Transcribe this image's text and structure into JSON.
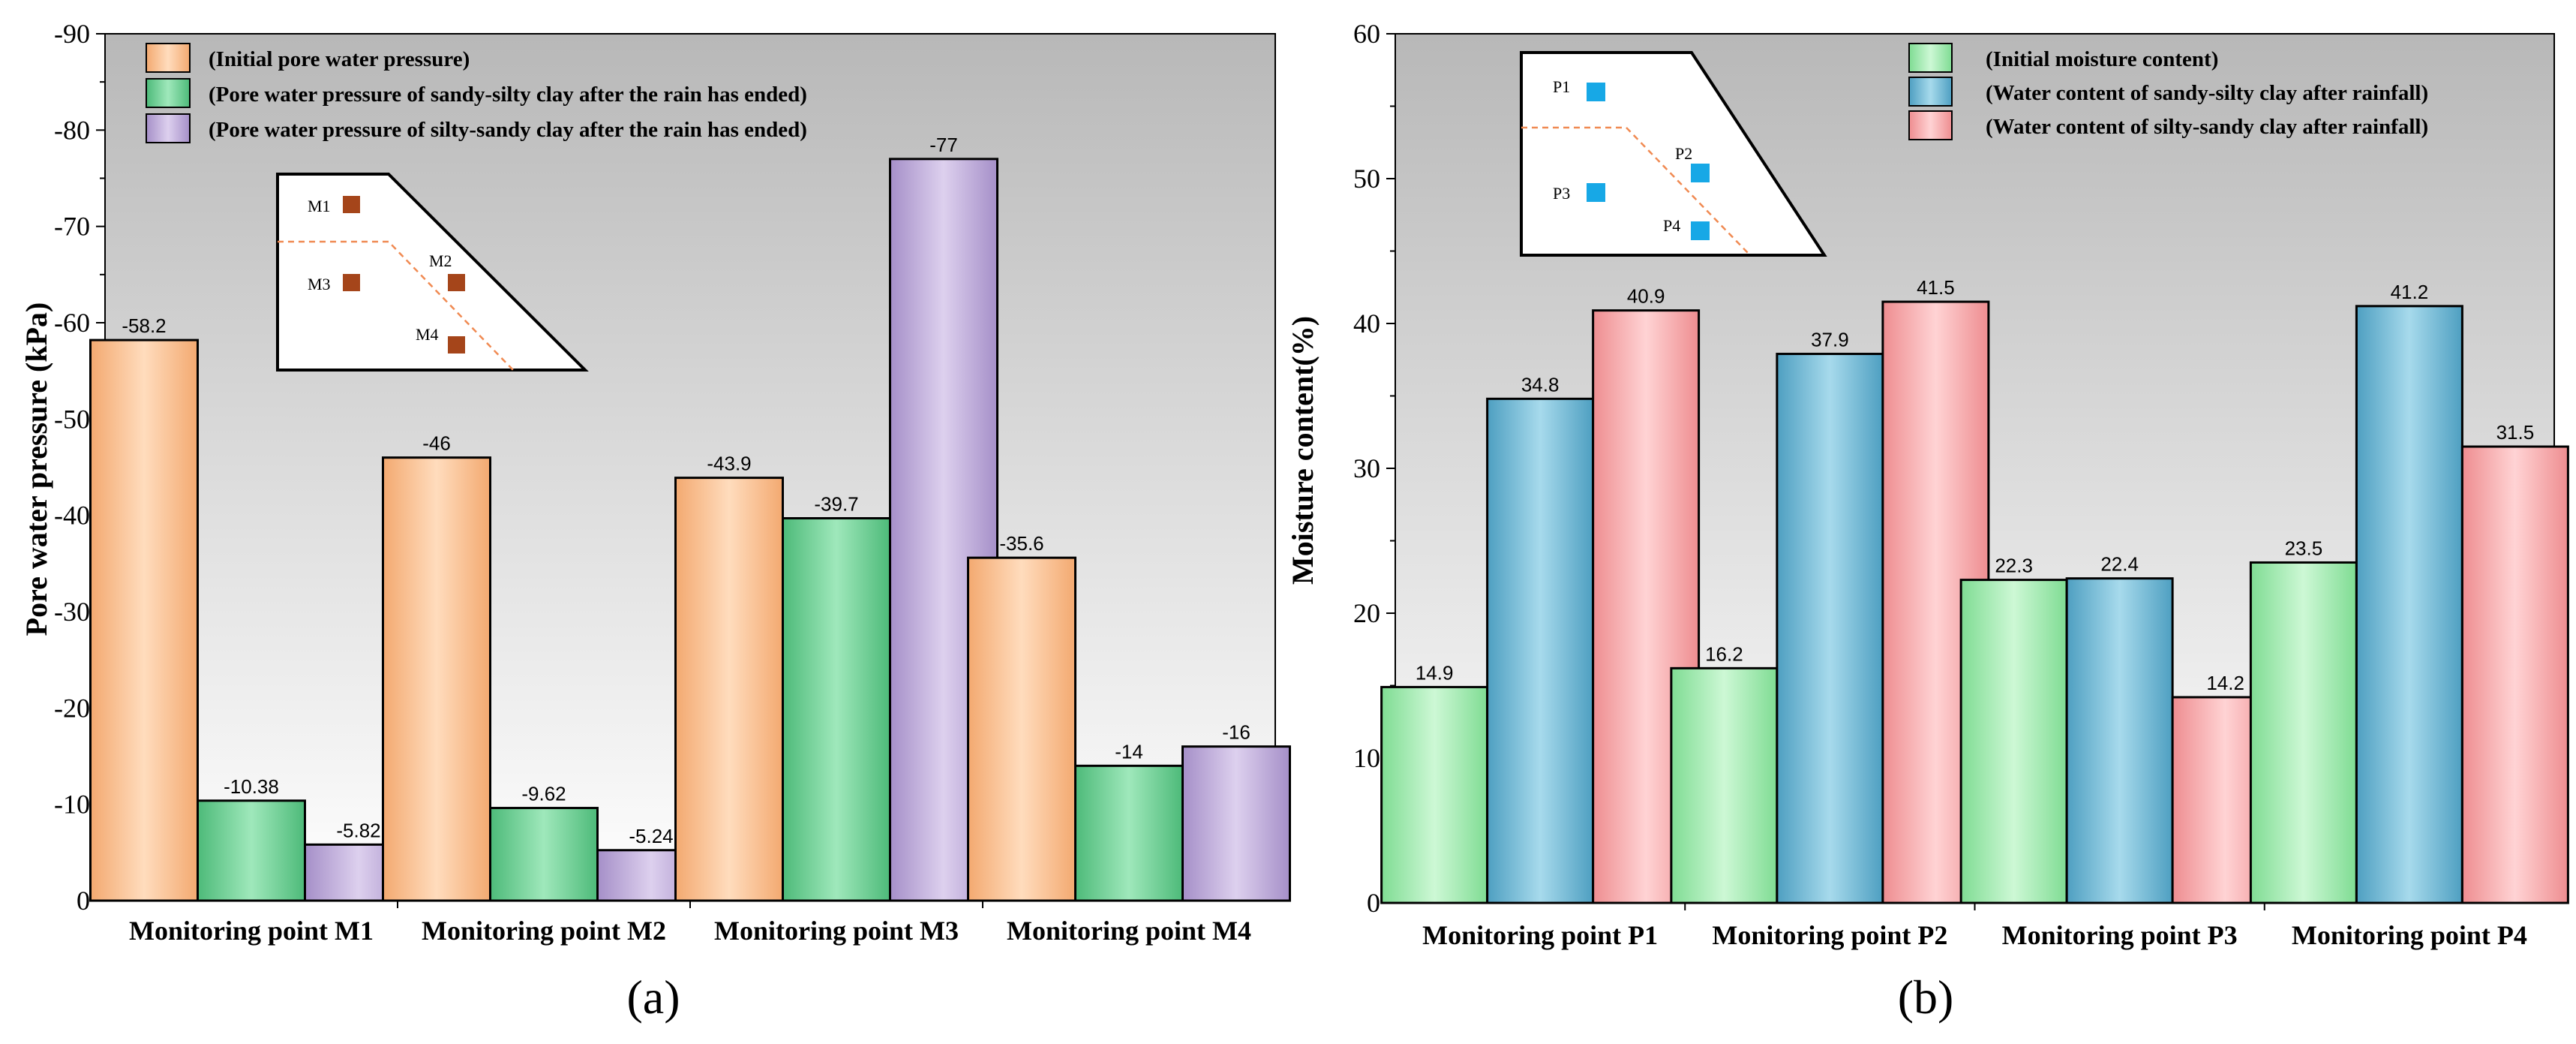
{
  "colors": {
    "peach": "#fdc69c",
    "green": "#75d49b",
    "purple": "#c3b1dc",
    "mint": "#a6ecb4",
    "blue": "#77bfd9",
    "pink": "#f8b2b4",
    "m_marker": "#a5451a",
    "p_marker": "#17a8e6"
  },
  "subplot_a": "(a)",
  "subplot_b": "(b)",
  "inset_a": {
    "labels": [
      "M1",
      "M2",
      "M3",
      "M4"
    ]
  },
  "inset_b": {
    "labels": [
      "P1",
      "P2",
      "P3",
      "P4"
    ]
  },
  "chart_data": [
    {
      "type": "bar",
      "ylabel": "Pore water pressure  (kPa)",
      "ylim": [
        0,
        -90
      ],
      "yticks": [
        0,
        -10,
        -20,
        -30,
        -40,
        -50,
        -60,
        -70,
        -80,
        -90
      ],
      "legend_position": "top-left",
      "categories": [
        "Monitoring point M1",
        "Monitoring point M2",
        "Monitoring point M3",
        "Monitoring point M4"
      ],
      "series": [
        {
          "name": "(Initial pore water pressure)",
          "values": [
            -58.2,
            -46,
            -43.9,
            -35.6
          ],
          "labels": [
            "-58.2",
            "-46",
            "-43.9",
            "-35.6"
          ],
          "color_key": "peach"
        },
        {
          "name": "(Pore water pressure of sandy-silty clay after the rain has ended)",
          "values": [
            -10.38,
            -9.62,
            -39.7,
            -14
          ],
          "labels": [
            "-10.38",
            "-9.62",
            "-39.7",
            "-14"
          ],
          "color_key": "green"
        },
        {
          "name": "(Pore water pressure of silty-sandy clay after the rain has ended)",
          "values": [
            -5.82,
            -5.24,
            -77,
            -16
          ],
          "labels": [
            "-5.82",
            "-5.24",
            "-77",
            "-16"
          ],
          "color_key": "purple"
        }
      ]
    },
    {
      "type": "bar",
      "ylabel": "Moisture content(%)",
      "ylim": [
        0,
        60
      ],
      "yticks": [
        0,
        10,
        20,
        30,
        40,
        50,
        60
      ],
      "legend_position": "top-right",
      "categories": [
        "Monitoring point P1",
        "Monitoring point P2",
        "Monitoring point P3",
        "Monitoring point P4"
      ],
      "series": [
        {
          "name": "(Initial moisture content)",
          "values": [
            14.9,
            16.2,
            22.3,
            23.5
          ],
          "labels": [
            "14.9",
            "16.2",
            "22.3",
            "23.5"
          ],
          "color_key": "mint"
        },
        {
          "name": "(Water content of sandy-silty clay after rainfall)",
          "values": [
            34.8,
            37.9,
            22.4,
            41.2
          ],
          "labels": [
            "34.8",
            "37.9",
            "22.4",
            "41.2"
          ],
          "color_key": "blue"
        },
        {
          "name": "(Water content of silty-sandy clay after rainfall)",
          "values": [
            40.9,
            41.5,
            14.2,
            31.5
          ],
          "labels": [
            "40.9",
            "41.5",
            "14.2",
            "31.5"
          ],
          "color_key": "pink"
        }
      ]
    }
  ]
}
